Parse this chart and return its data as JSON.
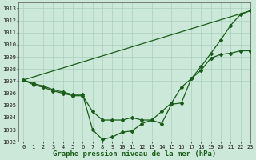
{
  "xlabel": "Graphe pression niveau de la mer (hPa)",
  "ylim": [
    1002,
    1013.5
  ],
  "xlim": [
    -0.5,
    23
  ],
  "yticks": [
    1002,
    1003,
    1004,
    1005,
    1006,
    1007,
    1008,
    1009,
    1010,
    1011,
    1012,
    1013
  ],
  "xticks": [
    0,
    1,
    2,
    3,
    4,
    5,
    6,
    7,
    8,
    9,
    10,
    11,
    12,
    13,
    14,
    15,
    16,
    17,
    18,
    19,
    20,
    21,
    22,
    23
  ],
  "bg_color": "#cce8d8",
  "grid_color": "#aacfbe",
  "line_color": "#1a5c1a",
  "series1": {
    "x": [
      0,
      1,
      2,
      3,
      4,
      5,
      6,
      7,
      8,
      9,
      10,
      11,
      12,
      13,
      14,
      15,
      16,
      17,
      18,
      19,
      20,
      21,
      22,
      23
    ],
    "y": [
      1007.1,
      1006.7,
      1006.5,
      1006.2,
      1006.0,
      1005.8,
      1005.8,
      1004.5,
      1003.8,
      1003.8,
      1003.8,
      1004.0,
      1003.8,
      1003.8,
      1004.5,
      1005.2,
      1006.5,
      1007.2,
      1007.9,
      1008.9,
      1009.2,
      1009.3,
      1009.5,
      1009.5
    ]
  },
  "series2": {
    "x": [
      0,
      1,
      2,
      3,
      4,
      5,
      6,
      7,
      8,
      9,
      10,
      11,
      12,
      13,
      14,
      15,
      16,
      17,
      18,
      19,
      20,
      21,
      22,
      23
    ],
    "y": [
      1007.1,
      1006.8,
      1006.6,
      1006.3,
      1006.1,
      1005.9,
      1005.9,
      1003.0,
      1002.2,
      1002.4,
      1002.8,
      1002.9,
      1003.5,
      1003.8,
      1003.5,
      1005.1,
      1005.2,
      1007.2,
      1008.2,
      1009.3,
      1010.4,
      1011.6,
      1012.5,
      1012.8
    ]
  },
  "series3": {
    "x": [
      0,
      23
    ],
    "y": [
      1007.1,
      1012.8
    ]
  },
  "marker": "D",
  "markersize": 2.0,
  "linewidth": 0.9,
  "tick_fontsize": 5.0,
  "xlabel_fontsize": 6.5
}
